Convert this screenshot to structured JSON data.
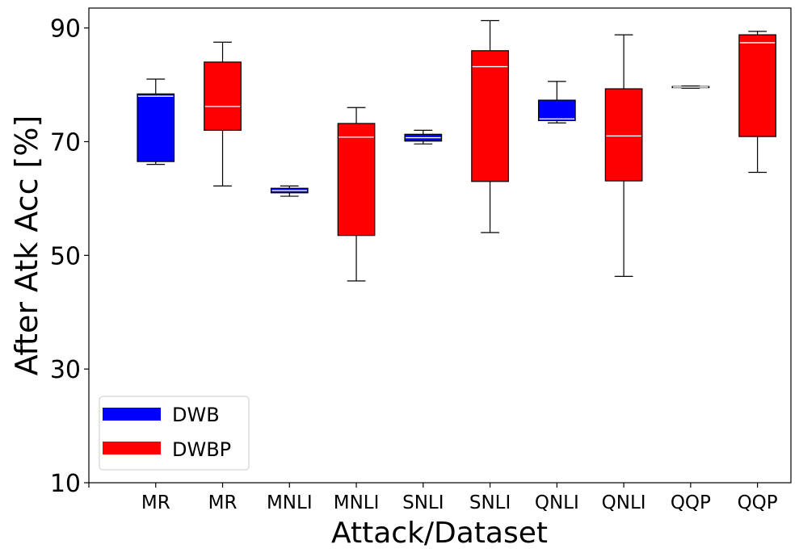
{
  "chart_data": {
    "type": "box",
    "xlabel": "Attack/Dataset",
    "ylabel": "After Atk Acc [%]",
    "ylim": [
      10,
      93.5
    ],
    "yticks": [
      10,
      30,
      50,
      70,
      90
    ],
    "grid": false,
    "legend": {
      "placement": "lower-left",
      "entries": [
        {
          "label": "DWB",
          "color": "#0000ff"
        },
        {
          "label": "DWBP",
          "color": "#ff0000"
        }
      ]
    },
    "categories": [
      "MR",
      "MR",
      "MNLI",
      "MNLI",
      "SNLI",
      "SNLI",
      "QNLI",
      "QNLI",
      "QQP",
      "QQP"
    ],
    "boxes": [
      {
        "label": "MR",
        "series": "DWB",
        "color": "#0000ff",
        "min": 66.0,
        "q1": 66.5,
        "median": 78.0,
        "q3": 78.4,
        "max": 81.0
      },
      {
        "label": "MR",
        "series": "DWBP",
        "color": "#ff0000",
        "min": 62.2,
        "q1": 72.0,
        "median": 76.2,
        "q3": 84.0,
        "max": 87.5
      },
      {
        "label": "MNLI",
        "series": "DWB",
        "color": "#0000ff",
        "min": 60.4,
        "q1": 61.0,
        "median": 61.4,
        "q3": 61.8,
        "max": 62.2
      },
      {
        "label": "MNLI",
        "series": "DWBP",
        "color": "#ff0000",
        "min": 45.5,
        "q1": 53.5,
        "median": 70.8,
        "q3": 73.2,
        "max": 76.0
      },
      {
        "label": "SNLI",
        "series": "DWB",
        "color": "#0000ff",
        "min": 69.6,
        "q1": 70.1,
        "median": 70.7,
        "q3": 71.3,
        "max": 72.0
      },
      {
        "label": "SNLI",
        "series": "DWBP",
        "color": "#ff0000",
        "min": 54.0,
        "q1": 63.0,
        "median": 83.2,
        "q3": 86.0,
        "max": 91.3
      },
      {
        "label": "QNLI",
        "series": "DWB",
        "color": "#0000ff",
        "min": 73.3,
        "q1": 73.7,
        "median": 74.0,
        "q3": 77.3,
        "max": 80.6
      },
      {
        "label": "QNLI",
        "series": "DWBP",
        "color": "#ff0000",
        "min": 46.3,
        "q1": 63.1,
        "median": 71.0,
        "q3": 79.3,
        "max": 88.8
      },
      {
        "label": "QQP",
        "series": "DWB",
        "color": "#0000ff",
        "min": 79.4,
        "q1": 79.5,
        "median": 79.6,
        "q3": 79.7,
        "max": 79.8
      },
      {
        "label": "QQP",
        "series": "DWBP",
        "color": "#ff0000",
        "min": 64.6,
        "q1": 70.9,
        "median": 87.4,
        "q3": 88.8,
        "max": 89.4
      }
    ]
  }
}
